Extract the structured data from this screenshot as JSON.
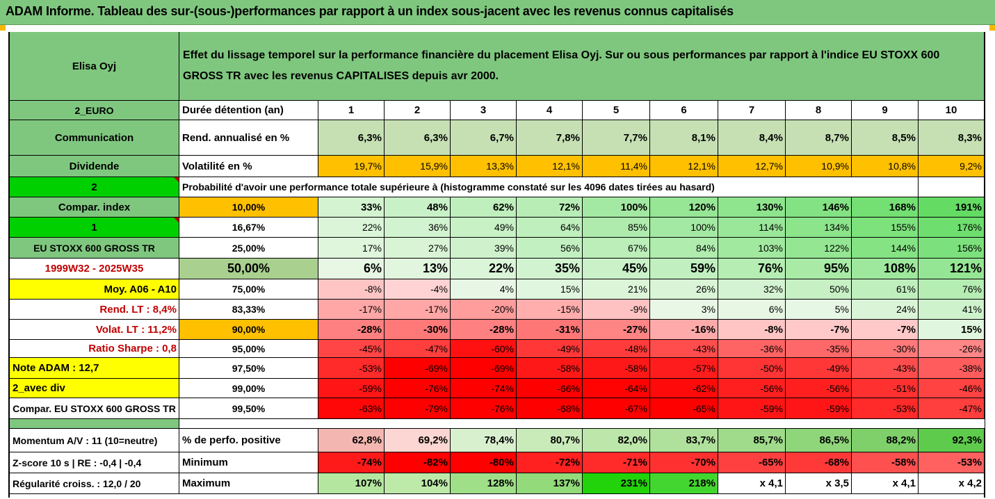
{
  "title": "ADAM Informe. Tableau des sur-(sous-)performances par rapport à un index sous-jacent avec les revenus connus capitalisés",
  "header": {
    "asset": "Elisa Oyj",
    "description": "Effet du lissage temporel sur la performance financière du placement Elisa Oyj. Sur ou sous performances par rapport à l'indice EU STOXX 600 GROSS TR avec les revenus CAPITALISES depuis avr 2000."
  },
  "side_labels": {
    "currency": "2_EURO",
    "sector": "Communication",
    "dividend": "Dividende",
    "flag2": "2",
    "compar_index": "Compar. index",
    "flag1": "1",
    "index_name": "EU STOXX 600 GROSS TR",
    "period": "1999W32 - 2025W35",
    "moy": "Moy. A06 - A10",
    "rend_lt": "Rend. LT :   8,4%",
    "volat_lt": "Volat. LT :   11,2%",
    "sharpe": "Ratio Sharpe :   0,8",
    "note": "Note ADAM : 12,7",
    "avec_div": "2_avec div",
    "compar_full": "Compar. EU STOXX 600 GROSS TR",
    "momentum": "Momentum A/V : 11 (10=neutre)",
    "zscore": "Z-score 10 s  | RE : -0,4  | -0,4",
    "regularite": "Régularité croiss. : 12,0 / 20"
  },
  "rows": {
    "duree_label": "Durée détention (an)",
    "years": [
      "1",
      "2",
      "3",
      "4",
      "5",
      "6",
      "7",
      "8",
      "9",
      "10"
    ],
    "rend_label": "Rend. annualisé en %",
    "rend": [
      "6,3%",
      "6,3%",
      "6,7%",
      "7,8%",
      "7,7%",
      "8,1%",
      "8,4%",
      "8,7%",
      "8,5%",
      "8,3%"
    ],
    "vol_label": "Volatilité en %",
    "vol": [
      "19,7%",
      "15,9%",
      "13,3%",
      "12,1%",
      "11,4%",
      "12,1%",
      "12,7%",
      "10,9%",
      "10,8%",
      "9,2%"
    ],
    "prob_label": "Probabilité d'avoir une performance totale supérieure à (histogramme constaté sur les 4096 dates tirées au hasard)"
  },
  "probability_table": [
    {
      "threshold": "10,00%",
      "values": [
        "33%",
        "48%",
        "62%",
        "72%",
        "100%",
        "120%",
        "130%",
        "146%",
        "168%",
        "191%"
      ]
    },
    {
      "threshold": "16,67%",
      "values": [
        "22%",
        "36%",
        "49%",
        "64%",
        "85%",
        "100%",
        "114%",
        "134%",
        "155%",
        "176%"
      ]
    },
    {
      "threshold": "25,00%",
      "values": [
        "17%",
        "27%",
        "39%",
        "56%",
        "67%",
        "84%",
        "103%",
        "122%",
        "144%",
        "156%"
      ]
    },
    {
      "threshold": "50,00%",
      "values": [
        "6%",
        "13%",
        "22%",
        "35%",
        "45%",
        "59%",
        "76%",
        "95%",
        "108%",
        "121%"
      ]
    },
    {
      "threshold": "75,00%",
      "values": [
        "-8%",
        "-4%",
        "4%",
        "15%",
        "21%",
        "26%",
        "32%",
        "50%",
        "61%",
        "76%"
      ]
    },
    {
      "threshold": "83,33%",
      "values": [
        "-17%",
        "-17%",
        "-20%",
        "-15%",
        "-9%",
        "3%",
        "6%",
        "5%",
        "24%",
        "41%"
      ]
    },
    {
      "threshold": "90,00%",
      "values": [
        "-28%",
        "-30%",
        "-28%",
        "-31%",
        "-27%",
        "-16%",
        "-8%",
        "-7%",
        "-7%",
        "15%"
      ]
    },
    {
      "threshold": "95,00%",
      "values": [
        "-45%",
        "-47%",
        "-60%",
        "-49%",
        "-48%",
        "-43%",
        "-36%",
        "-35%",
        "-30%",
        "-26%"
      ]
    },
    {
      "threshold": "97,50%",
      "values": [
        "-53%",
        "-69%",
        "-69%",
        "-58%",
        "-58%",
        "-57%",
        "-50%",
        "-49%",
        "-43%",
        "-38%"
      ]
    },
    {
      "threshold": "99,00%",
      "values": [
        "-59%",
        "-76%",
        "-74%",
        "-66%",
        "-64%",
        "-62%",
        "-56%",
        "-56%",
        "-51%",
        "-46%"
      ]
    },
    {
      "threshold": "99,50%",
      "values": [
        "-63%",
        "-79%",
        "-76%",
        "-68%",
        "-67%",
        "-65%",
        "-59%",
        "-59%",
        "-53%",
        "-47%"
      ]
    }
  ],
  "bottom": {
    "pos_label": "% de perfo. positive",
    "pos": [
      "62,8%",
      "69,2%",
      "78,4%",
      "80,7%",
      "82,0%",
      "83,7%",
      "85,7%",
      "86,5%",
      "88,2%",
      "92,3%"
    ],
    "min_label": "Minimum",
    "min": [
      "-74%",
      "-82%",
      "-80%",
      "-72%",
      "-71%",
      "-70%",
      "-65%",
      "-68%",
      "-58%",
      "-53%"
    ],
    "max_label": "Maximum",
    "max": [
      "107%",
      "104%",
      "128%",
      "137%",
      "231%",
      "218%",
      "x 4,1",
      "x 3,5",
      "x 4,1",
      "x 4,2"
    ]
  },
  "colors": {
    "header_green": "#7fc77f",
    "bright_green": "#00d000",
    "yellow": "#ffff00",
    "orange": "#ffc000",
    "light_green_cell": "#c6e0b4",
    "red": "#ff0000"
  }
}
